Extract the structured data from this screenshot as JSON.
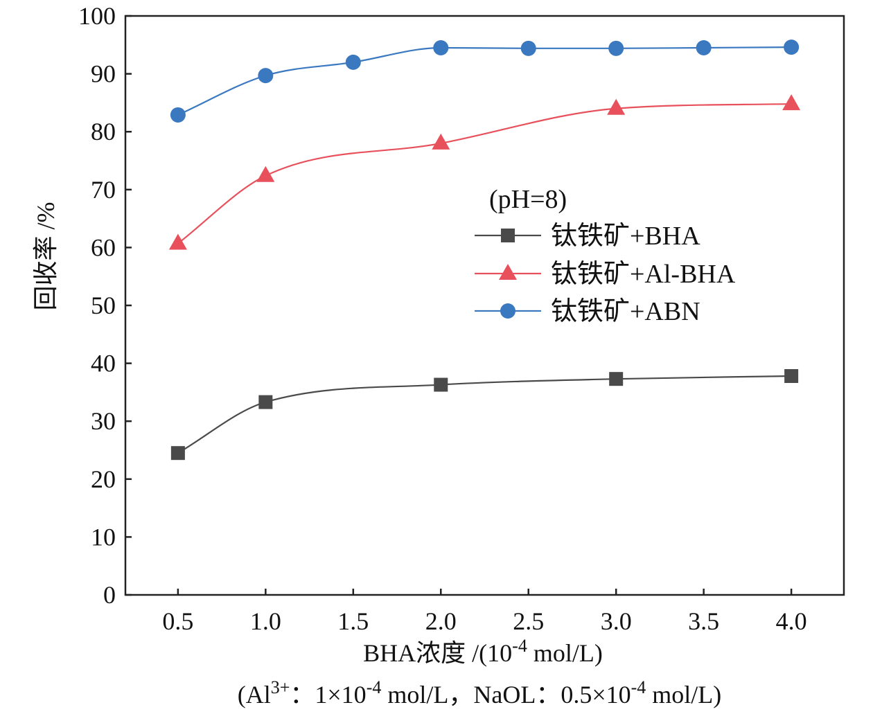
{
  "chart_data": {
    "type": "line",
    "xlabel": {
      "main": "BHA浓度 /(10",
      "sup": "-4",
      "tail": " mol/L)"
    },
    "ylabel": "回收率 /%",
    "condition": {
      "p1": "(Al",
      "p1_sup": "3+",
      "p2": "：1×10",
      "p2_sup": "-4",
      "p3": " mol/L，NaOL：0.5×10",
      "p3_sup": "-4",
      "p4": " mol/L)"
    },
    "xlim": [
      0.2,
      4.3
    ],
    "ylim": [
      0,
      100
    ],
    "xticks": [
      0.5,
      1.0,
      1.5,
      2.0,
      2.5,
      3.0,
      3.5,
      4.0
    ],
    "xtick_labels": [
      "0.5",
      "1.0",
      "1.5",
      "2.0",
      "2.5",
      "3.0",
      "3.5",
      "4.0"
    ],
    "yticks": [
      0,
      10,
      20,
      30,
      40,
      50,
      60,
      70,
      80,
      90,
      100
    ],
    "ytick_labels": [
      "0",
      "10",
      "20",
      "30",
      "40",
      "50",
      "60",
      "70",
      "80",
      "90",
      "100"
    ],
    "grid": false,
    "legend_title": "(pH=8)",
    "legend_position": "right-middle",
    "series": [
      {
        "name": "钛铁矿+BHA",
        "color": "#4a4a4a",
        "marker": "square",
        "x": [
          0.5,
          1.0,
          2.0,
          3.0,
          4.0
        ],
        "y": [
          24.5,
          33.3,
          36.3,
          37.3,
          37.8
        ]
      },
      {
        "name": "钛铁矿+Al-BHA",
        "color": "#e8505b",
        "marker": "triangle",
        "x": [
          0.5,
          1.0,
          2.0,
          3.0,
          4.0
        ],
        "y": [
          60.7,
          72.4,
          78.0,
          84.0,
          84.8
        ]
      },
      {
        "name": "钛铁矿+ABN",
        "color": "#3a78c0",
        "marker": "circle",
        "x": [
          0.5,
          1.0,
          1.5,
          2.0,
          2.5,
          3.0,
          3.5,
          4.0
        ],
        "y": [
          82.9,
          89.7,
          92.0,
          94.5,
          94.4,
          94.4,
          94.5,
          94.6
        ]
      }
    ]
  }
}
